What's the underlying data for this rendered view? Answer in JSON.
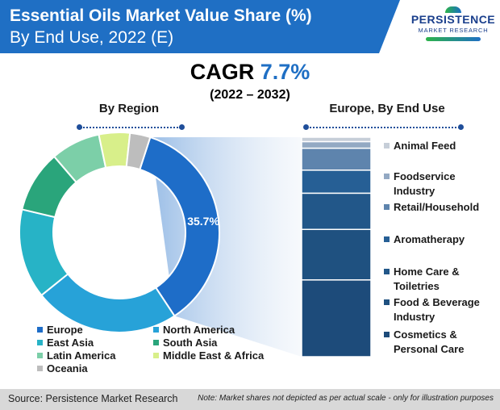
{
  "header": {
    "title_line1": "Essential Oils Market Value Share (%)",
    "title_line2": "By End Use, 2022 (E)",
    "logo_line1": "PERSISTENCE",
    "logo_line2": "MARKET RESEARCH"
  },
  "cagr": {
    "label": "CAGR",
    "value": "7.7%",
    "period": "(2022 – 2032)"
  },
  "colors": {
    "header": "#1f6fc4",
    "accent": "#1f6fc4"
  },
  "chart_data": [
    {
      "type": "pie",
      "title": "By Region",
      "donut": true,
      "categories": [
        "Europe",
        "North America",
        "East Asia",
        "South Asia",
        "Latin America",
        "Middle East & Africa",
        "Oceania"
      ],
      "values": [
        35.7,
        23.5,
        14.5,
        10.0,
        8.0,
        5.0,
        3.3
      ],
      "colors": [
        "#1e6dc8",
        "#27a2d8",
        "#27b3c6",
        "#2aa57b",
        "#7ccfa8",
        "#d8ef8a",
        "#bdbdbd"
      ],
      "data_labels": [
        "35.7%"
      ],
      "legend": "bottom"
    },
    {
      "type": "bar",
      "stacked": true,
      "title": "Europe, By End Use",
      "categories": [
        "Cosmetics & Personal Care",
        "Food & Beverage Industry",
        "Home Care & Toiletries",
        "Aromatherapy",
        "Retail/Household",
        "Foodservice Industry",
        "Animal Feed"
      ],
      "values": [
        35.0,
        23.0,
        16.5,
        10.5,
        10.0,
        3.0,
        2.0
      ],
      "colors": [
        "#1d4b7a",
        "#1f5180",
        "#225789",
        "#265f95",
        "#5e84ad",
        "#93a9c3",
        "#c6ced8"
      ]
    }
  ],
  "footer": {
    "source": "Source: Persistence Market Research",
    "note": "Note: Market shares not depicted as per actual scale - only for illustration purposes"
  }
}
